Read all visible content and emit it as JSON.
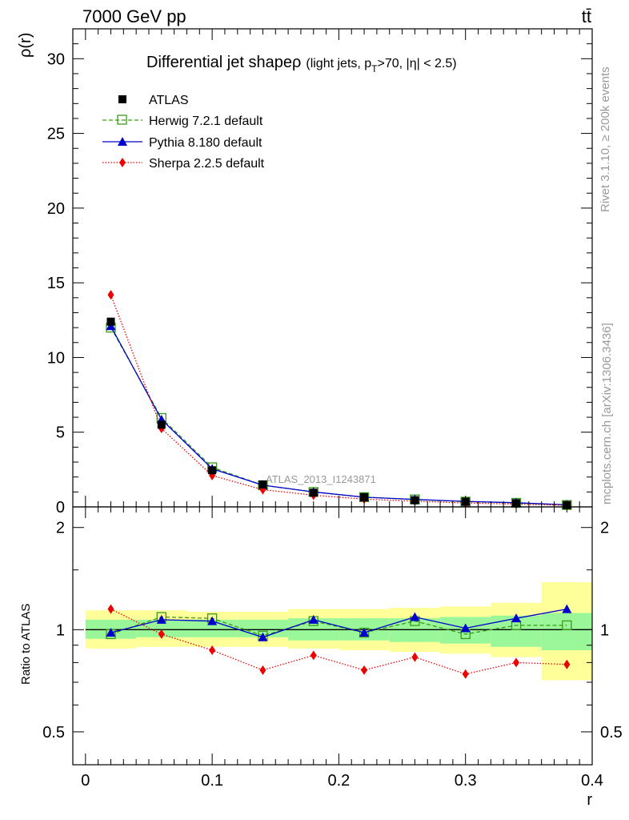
{
  "header": {
    "left": "7000 GeV pp",
    "right": "tt̄"
  },
  "side_labels": {
    "rivet": "Rivet 3.1.10, ≥ 200k events",
    "mcplots": "mcplots.cern.ch [arXiv:1306.3436]"
  },
  "watermark": "ATLAS_2013_I1243871",
  "colors": {
    "atlas": "#000000",
    "herwig": "#3a9a1a",
    "pythia": "#0000cc",
    "sherpa": "#ee0000",
    "band_inner": "#99f799",
    "band_outer": "#ffff99"
  },
  "chart_data": [
    {
      "type": "scatter",
      "panel": "main",
      "title_main": "Differential jet shape",
      "title_rho": "ρ",
      "title_tail_a": "(light jets, p",
      "title_sub": "T",
      "title_tail_b": ">70, |η| < 2.5)",
      "ylabel": "ρ(r)",
      "xlim": [
        -0.01,
        0.4
      ],
      "ylim": [
        0,
        32
      ],
      "yticks": [
        0,
        5,
        10,
        15,
        20,
        25,
        30
      ],
      "ytick_labels": [
        "0",
        "5",
        "10",
        "15",
        "20",
        "25",
        "30"
      ],
      "x": [
        0.02,
        0.06,
        0.1,
        0.14,
        0.18,
        0.22,
        0.26,
        0.3,
        0.34,
        0.38
      ],
      "legend_position": "top-left",
      "series": [
        {
          "name": "ATLAS",
          "style": "data",
          "values": [
            12.4,
            5.5,
            2.45,
            1.5,
            0.95,
            0.65,
            0.45,
            0.35,
            0.25,
            0.12
          ]
        },
        {
          "name": "Herwig 7.2.1 default",
          "style": "herwig",
          "values": [
            12.0,
            5.95,
            2.65,
            1.45,
            1.0,
            0.65,
            0.5,
            0.35,
            0.27,
            0.13
          ]
        },
        {
          "name": "Pythia 8.180 default",
          "style": "pythia",
          "values": [
            12.1,
            5.85,
            2.55,
            1.45,
            1.0,
            0.65,
            0.5,
            0.37,
            0.28,
            0.14
          ]
        },
        {
          "name": "Sherpa 2.2.5 default",
          "style": "sherpa",
          "values": [
            14.2,
            5.25,
            2.1,
            1.15,
            0.78,
            0.52,
            0.38,
            0.26,
            0.19,
            0.1
          ]
        }
      ]
    },
    {
      "type": "scatter",
      "panel": "ratio",
      "ylabel": "Ratio to ATLAS",
      "xlabel": "r",
      "xlim": [
        -0.01,
        0.4
      ],
      "ylim": [
        0.4,
        2.3
      ],
      "log_y": true,
      "yticks": [
        0.5,
        1,
        2
      ],
      "ytick_labels": [
        "0.5",
        "1",
        "2"
      ],
      "xticks": [
        0,
        0.1,
        0.2,
        0.3,
        0.4
      ],
      "xtick_labels": [
        "0",
        "0.1",
        "0.2",
        "0.3",
        "0.4"
      ],
      "reference": 1,
      "bins": [
        [
          0,
          0.04
        ],
        [
          0.04,
          0.08
        ],
        [
          0.08,
          0.12
        ],
        [
          0.12,
          0.16
        ],
        [
          0.16,
          0.2
        ],
        [
          0.2,
          0.24
        ],
        [
          0.24,
          0.28
        ],
        [
          0.28,
          0.32
        ],
        [
          0.32,
          0.36
        ],
        [
          0.36,
          0.4
        ]
      ],
      "band_inner": [
        [
          0.94,
          1.07
        ],
        [
          0.95,
          1.07
        ],
        [
          0.95,
          1.07
        ],
        [
          0.95,
          1.07
        ],
        [
          0.93,
          1.08
        ],
        [
          0.93,
          1.08
        ],
        [
          0.92,
          1.08
        ],
        [
          0.91,
          1.09
        ],
        [
          0.89,
          1.1
        ],
        [
          0.87,
          1.12
        ]
      ],
      "band_outer": [
        [
          0.88,
          1.14
        ],
        [
          0.89,
          1.14
        ],
        [
          0.89,
          1.13
        ],
        [
          0.89,
          1.13
        ],
        [
          0.88,
          1.15
        ],
        [
          0.87,
          1.15
        ],
        [
          0.86,
          1.16
        ],
        [
          0.85,
          1.17
        ],
        [
          0.83,
          1.2
        ],
        [
          0.71,
          1.38
        ]
      ],
      "x": [
        0.02,
        0.06,
        0.1,
        0.14,
        0.18,
        0.22,
        0.26,
        0.3,
        0.34,
        0.38
      ],
      "series": [
        {
          "name": "Herwig 7.2.1 default",
          "style": "herwig",
          "values": [
            0.97,
            1.09,
            1.08,
            0.96,
            1.06,
            0.98,
            1.06,
            0.97,
            1.03,
            1.03
          ]
        },
        {
          "name": "Pythia 8.180 default",
          "style": "pythia",
          "values": [
            0.98,
            1.07,
            1.06,
            0.95,
            1.07,
            0.98,
            1.09,
            1.01,
            1.08,
            1.15
          ]
        },
        {
          "name": "Sherpa 2.2.5 default",
          "style": "sherpa",
          "values": [
            1.15,
            0.97,
            0.87,
            0.76,
            0.84,
            0.76,
            0.83,
            0.74,
            0.8,
            0.79
          ]
        }
      ]
    }
  ]
}
